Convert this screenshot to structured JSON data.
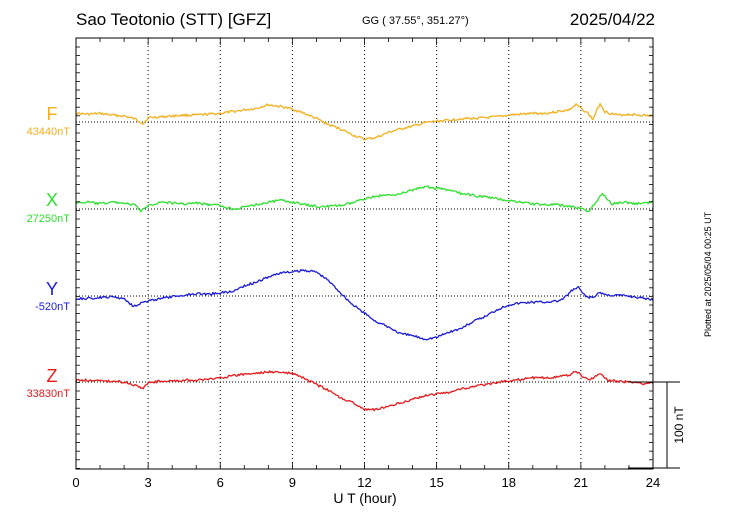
{
  "header": {
    "station": "Sao Teotonio (STT)  [GFZ]",
    "coords": "GG ( 37.55°, 351.27°)",
    "date": "2025/04/22"
  },
  "chart_data": {
    "type": "line",
    "xlabel": "U T (hour)",
    "x_ticks": [
      0,
      3,
      6,
      9,
      12,
      15,
      18,
      21,
      24
    ],
    "xlim": [
      0,
      24
    ],
    "grid": true,
    "scale_label": "100 nT",
    "scale_nT": 100,
    "plotted_note": "Plotted at 2025/05/04 00:25 UT",
    "series": [
      {
        "name": "F",
        "baseline_label": "43440nT",
        "baseline_nT": 43440,
        "color": "#f2b01e",
        "x": [
          0,
          0.5,
          1,
          1.5,
          2,
          2.5,
          2.8,
          3,
          3.5,
          4,
          4.5,
          5,
          5.5,
          6,
          6.5,
          7,
          7.5,
          8,
          8.5,
          9,
          9.5,
          10,
          10.5,
          11,
          11.5,
          12,
          12.5,
          13,
          13.5,
          14,
          14.5,
          15,
          15.5,
          16,
          16.5,
          17,
          17.5,
          18,
          18.5,
          19,
          19.5,
          20,
          20.5,
          20.8,
          21,
          21.3,
          21.5,
          21.8,
          22,
          22.5,
          23,
          23.5,
          24
        ],
        "values": [
          10,
          9,
          10,
          8,
          7,
          3,
          -2,
          5,
          6,
          7,
          8,
          8,
          9,
          10,
          12,
          14,
          16,
          20,
          18,
          15,
          10,
          4,
          -3,
          -8,
          -15,
          -20,
          -18,
          -12,
          -8,
          -5,
          -1,
          1,
          2,
          4,
          4,
          5,
          6,
          8,
          9,
          10,
          10,
          12,
          14,
          20,
          16,
          10,
          3,
          22,
          12,
          8,
          9,
          8,
          7
        ]
      },
      {
        "name": "X",
        "baseline_label": "27250nT",
        "baseline_nT": 27250,
        "color": "#2fe02f",
        "x": [
          0,
          0.5,
          1,
          1.5,
          2,
          2.5,
          2.7,
          3,
          3.5,
          4,
          4.5,
          5,
          5.5,
          6,
          6.5,
          7,
          7.5,
          8,
          8.5,
          9,
          9.5,
          10,
          10.5,
          11,
          11.5,
          12,
          12.5,
          13,
          13.5,
          14,
          14.5,
          15,
          15.5,
          16,
          16.5,
          17,
          17.5,
          18,
          18.5,
          19,
          19.5,
          20,
          20.5,
          21,
          21.3,
          21.6,
          21.9,
          22.3,
          22.8,
          23.3,
          24
        ],
        "values": [
          7,
          8,
          6,
          8,
          7,
          4,
          -3,
          4,
          8,
          7,
          6,
          7,
          5,
          4,
          0,
          2,
          5,
          8,
          10,
          8,
          5,
          3,
          3,
          4,
          7,
          12,
          15,
          16,
          18,
          22,
          26,
          24,
          22,
          18,
          16,
          14,
          12,
          10,
          8,
          6,
          5,
          5,
          3,
          1,
          -3,
          6,
          18,
          6,
          8,
          6,
          8
        ]
      },
      {
        "name": "Y",
        "baseline_label": "-520nT",
        "baseline_nT": -520,
        "color": "#1c1cd6",
        "x": [
          0,
          0.5,
          1,
          1.5,
          2,
          2.4,
          2.7,
          3,
          3.5,
          4,
          4.5,
          5,
          5.5,
          6,
          6.5,
          7,
          7.5,
          8,
          8.5,
          9,
          9.5,
          10,
          10.5,
          11,
          11.5,
          12,
          12.5,
          13,
          13.5,
          14,
          14.5,
          15,
          15.5,
          16,
          16.5,
          17,
          17.5,
          18,
          18.5,
          19,
          19.5,
          20,
          20.3,
          20.6,
          20.9,
          21.2,
          21.5,
          21.8,
          22.1,
          22.5,
          23,
          23.5,
          24
        ],
        "values": [
          -3,
          -3,
          -2,
          -1,
          -3,
          -12,
          -8,
          -6,
          -3,
          -1,
          1,
          3,
          2,
          4,
          5,
          12,
          16,
          22,
          27,
          28,
          30,
          28,
          18,
          4,
          -10,
          -20,
          -30,
          -36,
          -44,
          -46,
          -50,
          -48,
          -42,
          -38,
          -30,
          -24,
          -16,
          -10,
          -8,
          -7,
          -7,
          -6,
          -3,
          6,
          10,
          -1,
          -2,
          4,
          1,
          1,
          0,
          -2,
          -4
        ]
      },
      {
        "name": "Z",
        "baseline_label": "33830nT",
        "baseline_nT": 33830,
        "color": "#e31b1b",
        "x": [
          0,
          0.5,
          1,
          1.5,
          2,
          2.5,
          2.8,
          3,
          3.5,
          4,
          4.5,
          5,
          5.5,
          6,
          6.5,
          7,
          7.5,
          8,
          8.5,
          9,
          9.5,
          10,
          10.5,
          11,
          11.5,
          12,
          12.5,
          13,
          13.5,
          14,
          14.5,
          15,
          15.5,
          16,
          16.5,
          17,
          17.5,
          18,
          18.5,
          19,
          19.5,
          20,
          20.5,
          20.8,
          21.1,
          21.4,
          21.8,
          22.1,
          22.5,
          23,
          23.5,
          24
        ],
        "values": [
          2,
          2,
          1,
          1,
          0,
          -4,
          -7,
          -1,
          1,
          1,
          2,
          2,
          3,
          5,
          7,
          9,
          10,
          12,
          11,
          10,
          4,
          -3,
          -10,
          -18,
          -24,
          -32,
          -32,
          -28,
          -24,
          -20,
          -16,
          -14,
          -12,
          -8,
          -6,
          -3,
          -1,
          2,
          3,
          5,
          5,
          6,
          8,
          12,
          6,
          3,
          10,
          2,
          1,
          0,
          -2,
          -1
        ]
      }
    ]
  }
}
